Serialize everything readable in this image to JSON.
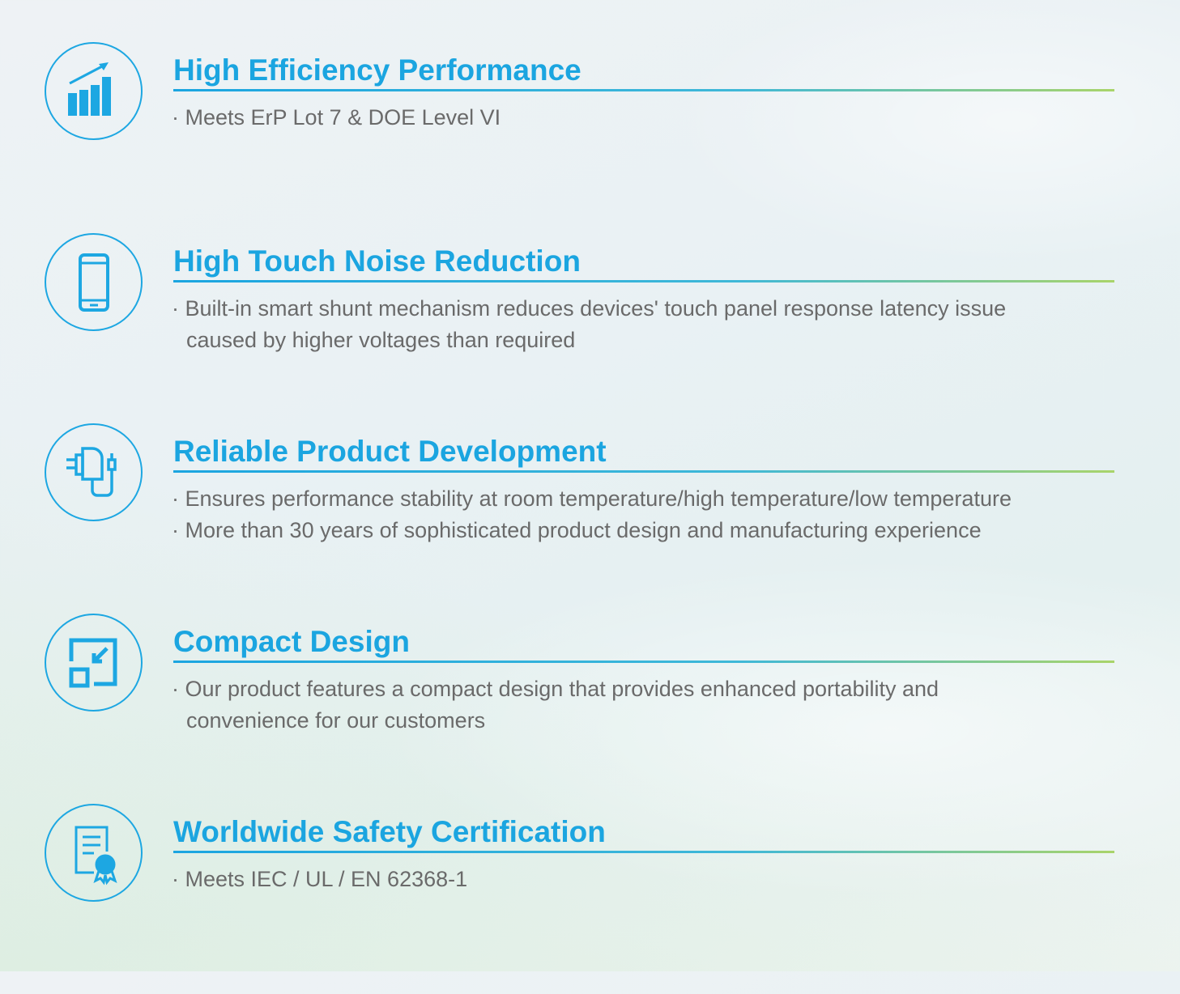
{
  "features": [
    {
      "title": "High Efficiency Performance",
      "icon": "growth-chart-icon",
      "bullets": [
        "· Meets ErP Lot 7 & DOE Level VI"
      ]
    },
    {
      "title": "High Touch Noise Reduction",
      "icon": "smartphone-icon",
      "bullets": [
        "· Built-in smart shunt mechanism reduces devices' touch panel response latency issue",
        "caused by higher voltages than required"
      ]
    },
    {
      "title": "Reliable Product Development",
      "icon": "charger-adapter-icon",
      "bullets": [
        "· Ensures performance stability at room temperature/high temperature/low temperature",
        "· More than 30 years of sophisticated product  design and manufacturing experience"
      ]
    },
    {
      "title": "Compact Design",
      "icon": "shrink-resize-icon",
      "bullets": [
        "· Our product features a compact design that provides enhanced portability and",
        "convenience for our customers"
      ]
    },
    {
      "title": "Worldwide Safety Certification",
      "icon": "certificate-icon",
      "bullets": [
        "· Meets IEC / UL / EN 62368-1"
      ]
    }
  ],
  "colors": {
    "accent": "#1ba5e0",
    "accent_end": "#a9d46a",
    "text": "#6a6a6a"
  }
}
